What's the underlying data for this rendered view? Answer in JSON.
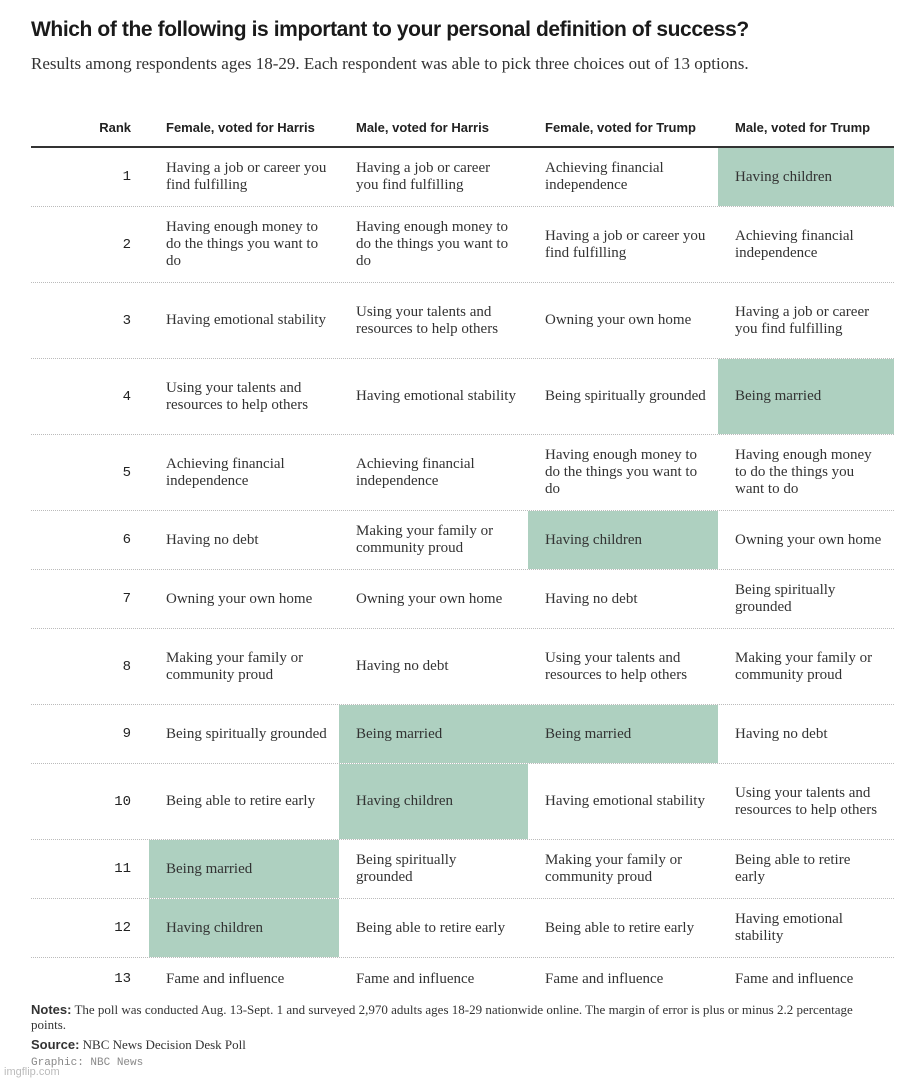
{
  "header": {
    "title": "Which of the following is important to your personal definition of success?",
    "subtitle": "Results among respondents ages 18-29. Each respondent was able to pick three choices out of 13 options."
  },
  "chart_data": {
    "type": "table",
    "columns": [
      "Rank",
      "Female, voted for Harris",
      "Male, voted for Harris",
      "Female, voted for Trump",
      "Male, voted for Trump"
    ],
    "rows": [
      {
        "rank": "1",
        "cells": [
          "Having a job or career you find fulfilling",
          "Having a job or career you find fulfilling",
          "Achieving financial independence",
          "Having children"
        ],
        "highlight": [
          false,
          false,
          false,
          true
        ]
      },
      {
        "rank": "2",
        "cells": [
          "Having enough money to do the things you want to do",
          "Having enough money to do the things you want to do",
          "Having a job or career you find fulfilling",
          "Achieving financial independence"
        ],
        "highlight": [
          false,
          false,
          false,
          false
        ]
      },
      {
        "rank": "3",
        "cells": [
          "Having emotional stability",
          "Using your talents and resources to help others",
          "Owning your own home",
          "Having a job or career you find fulfilling"
        ],
        "highlight": [
          false,
          false,
          false,
          false
        ]
      },
      {
        "rank": "4",
        "cells": [
          "Using your talents and resources to help others",
          "Having emotional stability",
          "Being spiritually grounded",
          "Being married"
        ],
        "highlight": [
          false,
          false,
          false,
          true
        ]
      },
      {
        "rank": "5",
        "cells": [
          "Achieving financial independence",
          "Achieving financial independence",
          "Having enough money to do the things you want to do",
          "Having enough money to do the things you want to do"
        ],
        "highlight": [
          false,
          false,
          false,
          false
        ]
      },
      {
        "rank": "6",
        "cells": [
          "Having no debt",
          "Making your family or community proud",
          "Having children",
          "Owning your own home"
        ],
        "highlight": [
          false,
          false,
          true,
          false
        ]
      },
      {
        "rank": "7",
        "cells": [
          "Owning your own home",
          "Owning your own home",
          "Having no debt",
          "Being spiritually grounded"
        ],
        "highlight": [
          false,
          false,
          false,
          false
        ]
      },
      {
        "rank": "8",
        "cells": [
          "Making your family or community proud",
          "Having no debt",
          "Using your talents and resources to help others",
          "Making your family or community proud"
        ],
        "highlight": [
          false,
          false,
          false,
          false
        ]
      },
      {
        "rank": "9",
        "cells": [
          "Being spiritually grounded",
          "Being married",
          "Being married",
          "Having no debt"
        ],
        "highlight": [
          false,
          true,
          true,
          false
        ]
      },
      {
        "rank": "10",
        "cells": [
          "Being able to retire early",
          "Having children",
          "Having emotional stability",
          "Using your talents and resources to help others"
        ],
        "highlight": [
          false,
          true,
          false,
          false
        ]
      },
      {
        "rank": "11",
        "cells": [
          "Being married",
          "Being spiritually grounded",
          "Making your family or community proud",
          "Being able to retire early"
        ],
        "highlight": [
          true,
          false,
          false,
          false
        ]
      },
      {
        "rank": "12",
        "cells": [
          "Having children",
          "Being able to retire early",
          "Being able to retire early",
          "Having emotional stability"
        ],
        "highlight": [
          true,
          false,
          false,
          false
        ]
      },
      {
        "rank": "13",
        "cells": [
          "Fame and influence",
          "Fame and influence",
          "Fame and influence",
          "Fame and influence"
        ],
        "highlight": [
          false,
          false,
          false,
          false
        ]
      }
    ],
    "highlight_color": "#aed0c0"
  },
  "footer": {
    "notes_label": "Notes:",
    "notes_text": " The poll was conducted Aug. 13-Sept. 1 and surveyed 2,970 adults ages 18-29 nationwide online. The margin of error is plus or minus 2.2 percentage points.",
    "source_label": "Source:",
    "source_text": " NBC News Decision Desk Poll",
    "graphic": "Graphic: NBC News",
    "watermark": "imgflip.com"
  }
}
